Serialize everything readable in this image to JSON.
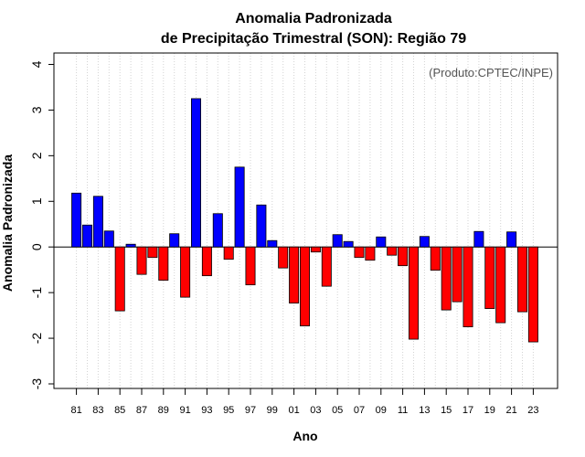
{
  "chart_data": {
    "type": "bar",
    "title": "Anomalia Padronizada",
    "subtitle": "de Precipitação Trimestral (SON): Região 79",
    "xlabel": "Ano",
    "ylabel": "Anomalia Padronizada",
    "annotation": "(Produto:CPTEC/INPE)",
    "ylim": [
      -3.1,
      4.25
    ],
    "yticks": [
      -3,
      -2,
      -1,
      0,
      1,
      2,
      3,
      4
    ],
    "ytick_labels": [
      "-3",
      "-2",
      "-1",
      "0",
      "1",
      "2",
      "3",
      "4"
    ],
    "xtick_labels": [
      "81",
      "83",
      "85",
      "87",
      "89",
      "91",
      "93",
      "95",
      "97",
      "99",
      "01",
      "03",
      "05",
      "07",
      "09",
      "11",
      "13",
      "15",
      "17",
      "19",
      "21",
      "23"
    ],
    "categories": [
      "1981",
      "1982",
      "1983",
      "1984",
      "1985",
      "1986",
      "1987",
      "1988",
      "1989",
      "1990",
      "1991",
      "1992",
      "1993",
      "1994",
      "1995",
      "1996",
      "1997",
      "1998",
      "1999",
      "2000",
      "2001",
      "2002",
      "2003",
      "2004",
      "2005",
      "2006",
      "2007",
      "2008",
      "2009",
      "2010",
      "2011",
      "2012",
      "2013",
      "2014",
      "2015",
      "2016",
      "2017",
      "2018",
      "2019",
      "2020",
      "2021",
      "2022",
      "2023"
    ],
    "values": [
      1.18,
      0.48,
      1.11,
      0.35,
      -1.4,
      0.06,
      -0.6,
      -0.23,
      -0.73,
      0.29,
      -1.1,
      3.25,
      -0.63,
      0.73,
      -0.27,
      1.75,
      -0.83,
      0.92,
      0.14,
      -0.46,
      -1.23,
      -1.73,
      -0.11,
      -0.86,
      0.27,
      0.12,
      -0.23,
      -0.29,
      0.22,
      -0.18,
      -0.41,
      -2.02,
      0.23,
      -0.51,
      -1.38,
      -1.2,
      -1.75,
      0.34,
      -1.35,
      -1.66,
      0.33,
      -1.42,
      -2.08
    ],
    "colors": {
      "positive": "#0000ff",
      "negative": "#ff0000",
      "edge": "#000000",
      "grid": "#d3d3d3",
      "zero_line": "#000000"
    },
    "grid": true
  }
}
